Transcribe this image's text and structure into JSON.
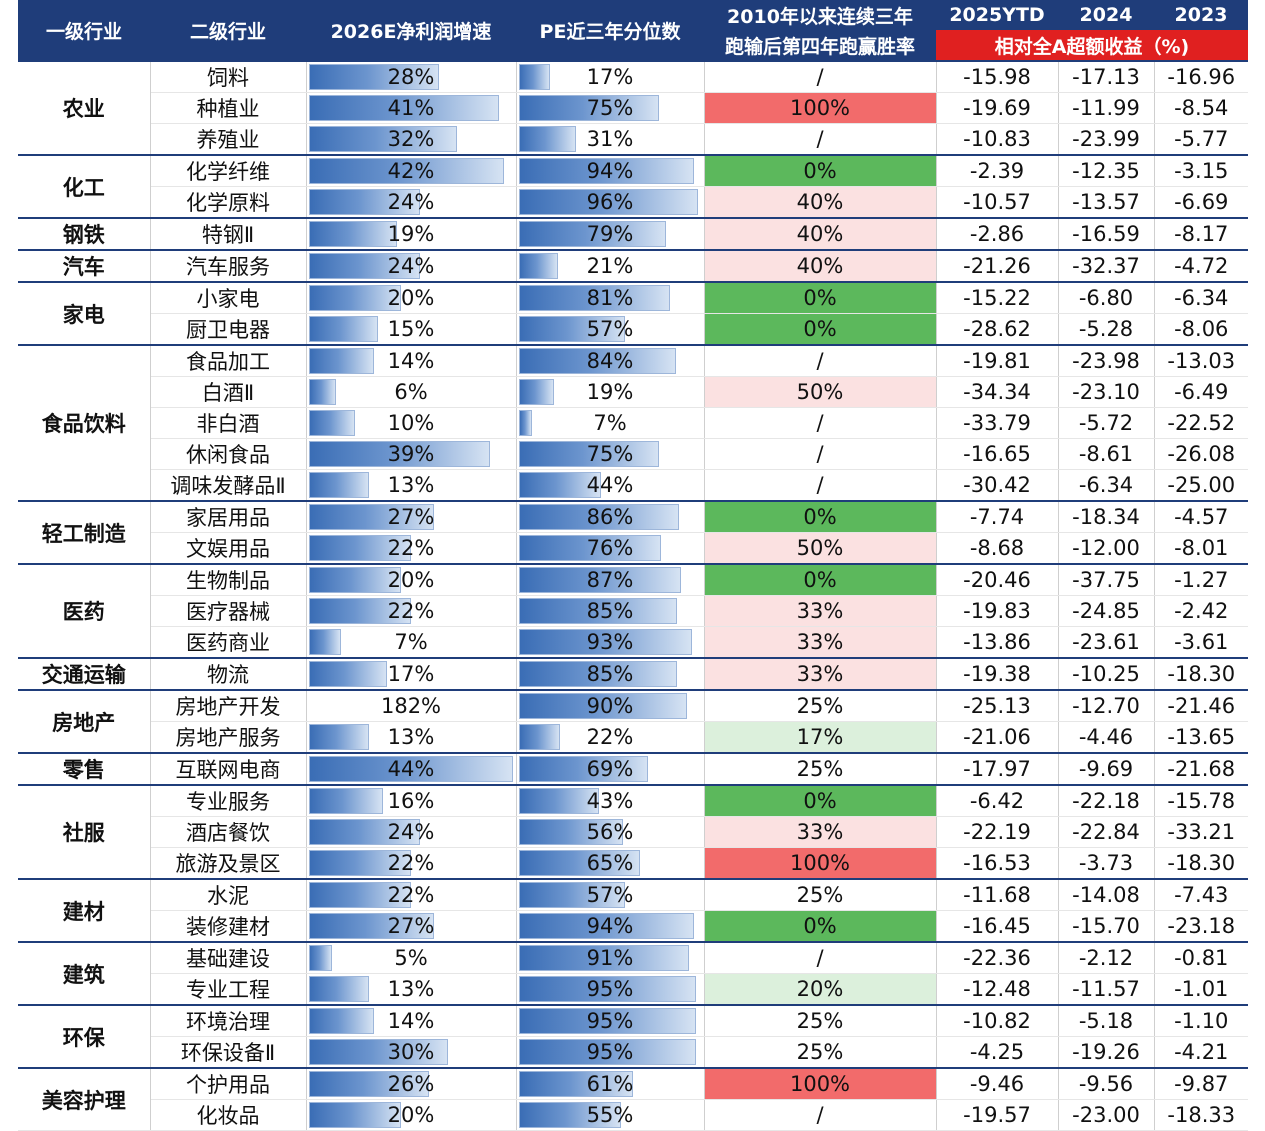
{
  "header": {
    "col1": "一级行业",
    "col2": "二级行业",
    "col3": "2026E净利润增速",
    "col4": "PE近三年分位数",
    "col5_line1": "2010年以来连续三年",
    "col5_line2": "跑输后第四年跑赢胜率",
    "col6": "2025YTD",
    "col7": "2024",
    "col8": "2023",
    "excess_label": "相对全A超额收益（%)"
  },
  "colors": {
    "header_bg": "#1F3D7A",
    "header_red": "#E02020",
    "win_0": "#5CB85C",
    "win_100": "#F26B6B",
    "win_mid": "#FBE1E1",
    "win_low": "#DCF0DC",
    "bar": "#4E7FC3"
  },
  "groups": [
    {
      "name": "农业",
      "rows": [
        {
          "sub": "饲料",
          "growth": "28%",
          "growth_v": 28,
          "pe": "17%",
          "pe_v": 17,
          "win": "/",
          "win_v": null,
          "ytd": "-15.98",
          "y2024": "-17.13",
          "y2023": "-16.96"
        },
        {
          "sub": "种植业",
          "growth": "41%",
          "growth_v": 41,
          "pe": "75%",
          "pe_v": 75,
          "win": "100%",
          "win_v": 100,
          "ytd": "-19.69",
          "y2024": "-11.99",
          "y2023": "-8.54"
        },
        {
          "sub": "养殖业",
          "growth": "32%",
          "growth_v": 32,
          "pe": "31%",
          "pe_v": 31,
          "win": "/",
          "win_v": null,
          "ytd": "-10.83",
          "y2024": "-23.99",
          "y2023": "-5.77"
        }
      ]
    },
    {
      "name": "化工",
      "rows": [
        {
          "sub": "化学纤维",
          "growth": "42%",
          "growth_v": 42,
          "pe": "94%",
          "pe_v": 94,
          "win": "0%",
          "win_v": 0,
          "ytd": "-2.39",
          "y2024": "-12.35",
          "y2023": "-3.15"
        },
        {
          "sub": "化学原料",
          "growth": "24%",
          "growth_v": 24,
          "pe": "96%",
          "pe_v": 96,
          "win": "40%",
          "win_v": 40,
          "ytd": "-10.57",
          "y2024": "-13.57",
          "y2023": "-6.69"
        }
      ]
    },
    {
      "name": "钢铁",
      "rows": [
        {
          "sub": "特钢Ⅱ",
          "growth": "19%",
          "growth_v": 19,
          "pe": "79%",
          "pe_v": 79,
          "win": "40%",
          "win_v": 40,
          "ytd": "-2.86",
          "y2024": "-16.59",
          "y2023": "-8.17"
        }
      ]
    },
    {
      "name": "汽车",
      "rows": [
        {
          "sub": "汽车服务",
          "growth": "24%",
          "growth_v": 24,
          "pe": "21%",
          "pe_v": 21,
          "win": "40%",
          "win_v": 40,
          "ytd": "-21.26",
          "y2024": "-32.37",
          "y2023": "-4.72"
        }
      ]
    },
    {
      "name": "家电",
      "rows": [
        {
          "sub": "小家电",
          "growth": "20%",
          "growth_v": 20,
          "pe": "81%",
          "pe_v": 81,
          "win": "0%",
          "win_v": 0,
          "ytd": "-15.22",
          "y2024": "-6.80",
          "y2023": "-6.34"
        },
        {
          "sub": "厨卫电器",
          "growth": "15%",
          "growth_v": 15,
          "pe": "57%",
          "pe_v": 57,
          "win": "0%",
          "win_v": 0,
          "ytd": "-28.62",
          "y2024": "-5.28",
          "y2023": "-8.06"
        }
      ]
    },
    {
      "name": "食品饮料",
      "rows": [
        {
          "sub": "食品加工",
          "growth": "14%",
          "growth_v": 14,
          "pe": "84%",
          "pe_v": 84,
          "win": "/",
          "win_v": null,
          "ytd": "-19.81",
          "y2024": "-23.98",
          "y2023": "-13.03"
        },
        {
          "sub": "白酒Ⅱ",
          "growth": "6%",
          "growth_v": 6,
          "pe": "19%",
          "pe_v": 19,
          "win": "50%",
          "win_v": 50,
          "ytd": "-34.34",
          "y2024": "-23.10",
          "y2023": "-6.49"
        },
        {
          "sub": "非白酒",
          "growth": "10%",
          "growth_v": 10,
          "pe": "7%",
          "pe_v": 7,
          "win": "/",
          "win_v": null,
          "ytd": "-33.79",
          "y2024": "-5.72",
          "y2023": "-22.52"
        },
        {
          "sub": "休闲食品",
          "growth": "39%",
          "growth_v": 39,
          "pe": "75%",
          "pe_v": 75,
          "win": "/",
          "win_v": null,
          "ytd": "-16.65",
          "y2024": "-8.61",
          "y2023": "-26.08"
        },
        {
          "sub": "调味发酵品Ⅱ",
          "growth": "13%",
          "growth_v": 13,
          "pe": "44%",
          "pe_v": 44,
          "win": "/",
          "win_v": null,
          "ytd": "-30.42",
          "y2024": "-6.34",
          "y2023": "-25.00"
        }
      ]
    },
    {
      "name": "轻工制造",
      "rows": [
        {
          "sub": "家居用品",
          "growth": "27%",
          "growth_v": 27,
          "pe": "86%",
          "pe_v": 86,
          "win": "0%",
          "win_v": 0,
          "ytd": "-7.74",
          "y2024": "-18.34",
          "y2023": "-4.57"
        },
        {
          "sub": "文娱用品",
          "growth": "22%",
          "growth_v": 22,
          "pe": "76%",
          "pe_v": 76,
          "win": "50%",
          "win_v": 50,
          "ytd": "-8.68",
          "y2024": "-12.00",
          "y2023": "-8.01"
        }
      ]
    },
    {
      "name": "医药",
      "rows": [
        {
          "sub": "生物制品",
          "growth": "20%",
          "growth_v": 20,
          "pe": "87%",
          "pe_v": 87,
          "win": "0%",
          "win_v": 0,
          "ytd": "-20.46",
          "y2024": "-37.75",
          "y2023": "-1.27"
        },
        {
          "sub": "医疗器械",
          "growth": "22%",
          "growth_v": 22,
          "pe": "85%",
          "pe_v": 85,
          "win": "33%",
          "win_v": 33,
          "ytd": "-19.83",
          "y2024": "-24.85",
          "y2023": "-2.42"
        },
        {
          "sub": "医药商业",
          "growth": "7%",
          "growth_v": 7,
          "pe": "93%",
          "pe_v": 93,
          "win": "33%",
          "win_v": 33,
          "ytd": "-13.86",
          "y2024": "-23.61",
          "y2023": "-3.61"
        }
      ]
    },
    {
      "name": "交通运输",
      "rows": [
        {
          "sub": "物流",
          "growth": "17%",
          "growth_v": 17,
          "pe": "85%",
          "pe_v": 85,
          "win": "33%",
          "win_v": 33,
          "ytd": "-19.38",
          "y2024": "-10.25",
          "y2023": "-18.30"
        }
      ]
    },
    {
      "name": "房地产",
      "rows": [
        {
          "sub": "房地产开发",
          "growth": "182%",
          "growth_v": 0,
          "pe": "90%",
          "pe_v": 90,
          "win": "25%",
          "win_v": 25,
          "ytd": "-25.13",
          "y2024": "-12.70",
          "y2023": "-21.46"
        },
        {
          "sub": "房地产服务",
          "growth": "13%",
          "growth_v": 13,
          "pe": "22%",
          "pe_v": 22,
          "win": "17%",
          "win_v": 17,
          "ytd": "-21.06",
          "y2024": "-4.46",
          "y2023": "-13.65"
        }
      ]
    },
    {
      "name": "零售",
      "rows": [
        {
          "sub": "互联网电商",
          "growth": "44%",
          "growth_v": 44,
          "pe": "69%",
          "pe_v": 69,
          "win": "25%",
          "win_v": 25,
          "ytd": "-17.97",
          "y2024": "-9.69",
          "y2023": "-21.68"
        }
      ]
    },
    {
      "name": "社服",
      "rows": [
        {
          "sub": "专业服务",
          "growth": "16%",
          "growth_v": 16,
          "pe": "43%",
          "pe_v": 43,
          "win": "0%",
          "win_v": 0,
          "ytd": "-6.42",
          "y2024": "-22.18",
          "y2023": "-15.78"
        },
        {
          "sub": "酒店餐饮",
          "growth": "24%",
          "growth_v": 24,
          "pe": "56%",
          "pe_v": 56,
          "win": "33%",
          "win_v": 33,
          "ytd": "-22.19",
          "y2024": "-22.84",
          "y2023": "-33.21"
        },
        {
          "sub": "旅游及景区",
          "growth": "22%",
          "growth_v": 22,
          "pe": "65%",
          "pe_v": 65,
          "win": "100%",
          "win_v": 100,
          "ytd": "-16.53",
          "y2024": "-3.73",
          "y2023": "-18.30"
        }
      ]
    },
    {
      "name": "建材",
      "rows": [
        {
          "sub": "水泥",
          "growth": "22%",
          "growth_v": 22,
          "pe": "57%",
          "pe_v": 57,
          "win": "25%",
          "win_v": 25,
          "ytd": "-11.68",
          "y2024": "-14.08",
          "y2023": "-7.43"
        },
        {
          "sub": "装修建材",
          "growth": "27%",
          "growth_v": 27,
          "pe": "94%",
          "pe_v": 94,
          "win": "0%",
          "win_v": 0,
          "ytd": "-16.45",
          "y2024": "-15.70",
          "y2023": "-23.18"
        }
      ]
    },
    {
      "name": "建筑",
      "rows": [
        {
          "sub": "基础建设",
          "growth": "5%",
          "growth_v": 5,
          "pe": "91%",
          "pe_v": 91,
          "win": "/",
          "win_v": null,
          "ytd": "-22.36",
          "y2024": "-2.12",
          "y2023": "-0.81"
        },
        {
          "sub": "专业工程",
          "growth": "13%",
          "growth_v": 13,
          "pe": "95%",
          "pe_v": 95,
          "win": "20%",
          "win_v": 20,
          "ytd": "-12.48",
          "y2024": "-11.57",
          "y2023": "-1.01"
        }
      ]
    },
    {
      "name": "环保",
      "rows": [
        {
          "sub": "环境治理",
          "growth": "14%",
          "growth_v": 14,
          "pe": "95%",
          "pe_v": 95,
          "win": "25%",
          "win_v": 25,
          "ytd": "-10.82",
          "y2024": "-5.18",
          "y2023": "-1.10"
        },
        {
          "sub": "环保设备Ⅱ",
          "growth": "30%",
          "growth_v": 30,
          "pe": "95%",
          "pe_v": 95,
          "win": "25%",
          "win_v": 25,
          "ytd": "-4.25",
          "y2024": "-19.26",
          "y2023": "-4.21"
        }
      ]
    },
    {
      "name": "美容护理",
      "rows": [
        {
          "sub": "个护用品",
          "growth": "26%",
          "growth_v": 26,
          "pe": "61%",
          "pe_v": 61,
          "win": "100%",
          "win_v": 100,
          "ytd": "-9.46",
          "y2024": "-9.56",
          "y2023": "-9.87"
        },
        {
          "sub": "化妆品",
          "growth": "20%",
          "growth_v": 20,
          "pe": "55%",
          "pe_v": 55,
          "win": "/",
          "win_v": null,
          "ytd": "-19.57",
          "y2024": "-23.00",
          "y2023": "-18.33"
        }
      ]
    }
  ]
}
